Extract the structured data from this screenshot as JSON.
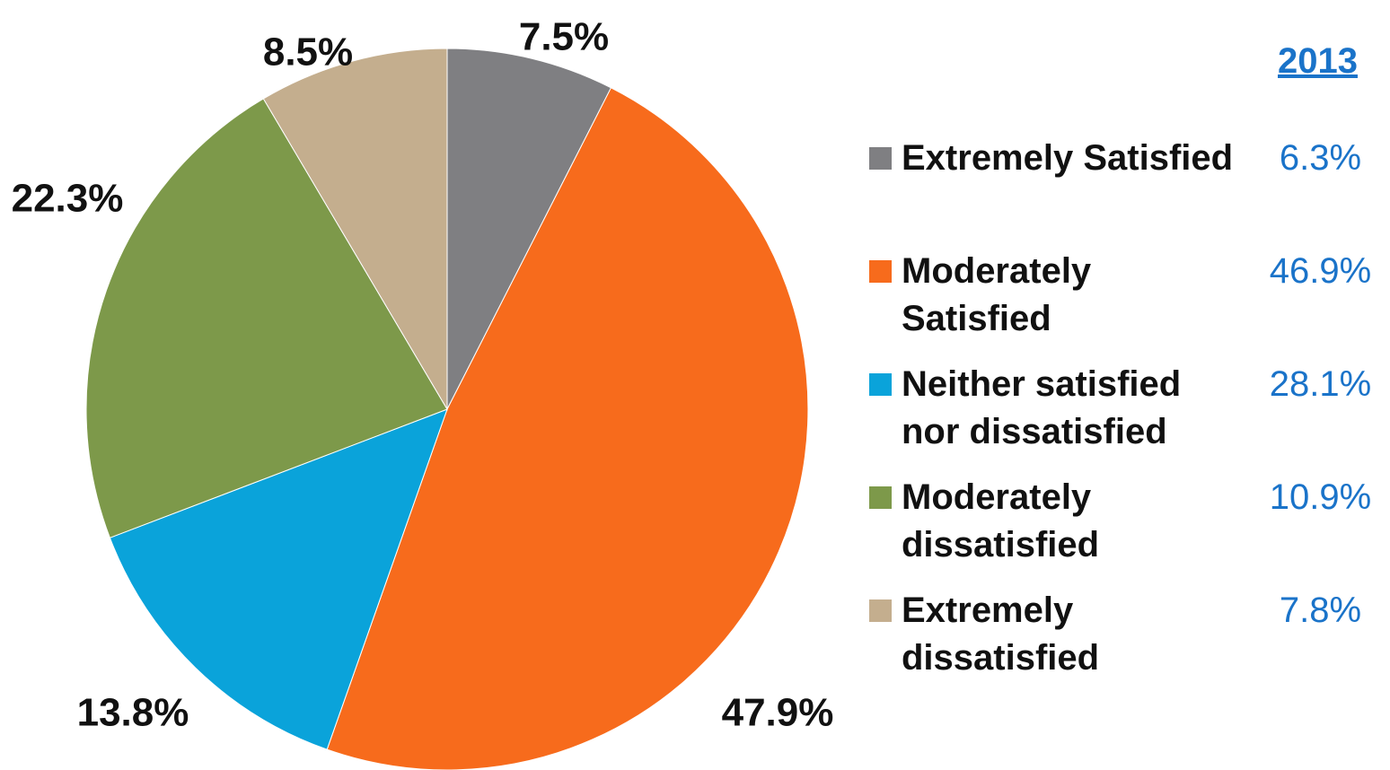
{
  "chart_data": {
    "type": "pie",
    "slices": [
      {
        "label": "Extremely Satisfied",
        "value": 7.5,
        "display": "7.5%",
        "color": "#7f7f82"
      },
      {
        "label": "Moderately Satisfied",
        "value": 47.9,
        "display": "47.9%",
        "color": "#f76b1c"
      },
      {
        "label": "Neither satisfied nor dissatisfied",
        "value": 13.8,
        "display": "13.8%",
        "color": "#0aa3da"
      },
      {
        "label": "Moderately dissatisfied",
        "value": 22.3,
        "display": "22.3%",
        "color": "#7d994a"
      },
      {
        "label": "Extremely dissatisfied",
        "value": 8.5,
        "display": "8.5%",
        "color": "#c4ae8e"
      }
    ],
    "start": "12 o'clock",
    "direction": "clockwise",
    "legend_placement": "right"
  },
  "legend": {
    "column_header": "2013",
    "items": [
      {
        "label": "Extremely Satisfied",
        "color": "#7f7f82",
        "value_2013": "6.3%"
      },
      {
        "label": "Moderately Satisfied",
        "color": "#f76b1c",
        "value_2013": "46.9%"
      },
      {
        "label": "Neither satisfied nor dissatisfied",
        "color": "#0aa3da",
        "value_2013": "28.1%"
      },
      {
        "label": "Moderately dissatisfied",
        "color": "#7d994a",
        "value_2013": "10.9%"
      },
      {
        "label": "Extremely dissatisfied",
        "color": "#c4ae8e",
        "value_2013": "7.8%"
      }
    ]
  },
  "colors": {
    "label_text": "#111111",
    "accent_2013": "#1a73c9"
  }
}
